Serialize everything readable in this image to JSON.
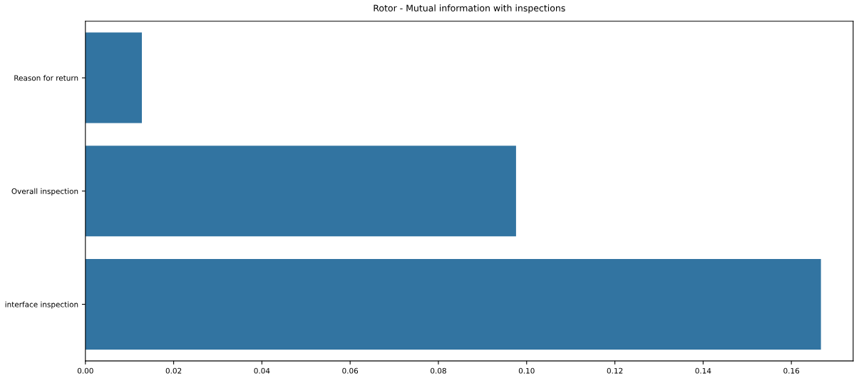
{
  "chart_data": {
    "type": "bar",
    "orientation": "horizontal",
    "title": "Rotor - Mutual information with inspections",
    "categories": [
      "Reason for return",
      "Overall inspection",
      "interface inspection"
    ],
    "values": [
      0.0128,
      0.0976,
      0.1667
    ],
    "color": "#3274a1",
    "xlim": [
      0,
      0.174
    ],
    "xticks": [
      {
        "value": 0,
        "label": "0.00"
      },
      {
        "value": 0.02,
        "label": "0.02"
      },
      {
        "value": 0.04,
        "label": "0.04"
      },
      {
        "value": 0.06,
        "label": "0.06"
      },
      {
        "value": 0.08,
        "label": "0.08"
      },
      {
        "value": 0.1,
        "label": "0.10"
      },
      {
        "value": 0.12,
        "label": "0.12"
      },
      {
        "value": 0.14,
        "label": "0.14"
      },
      {
        "value": 0.16,
        "label": "0.16"
      }
    ],
    "grid": false
  }
}
